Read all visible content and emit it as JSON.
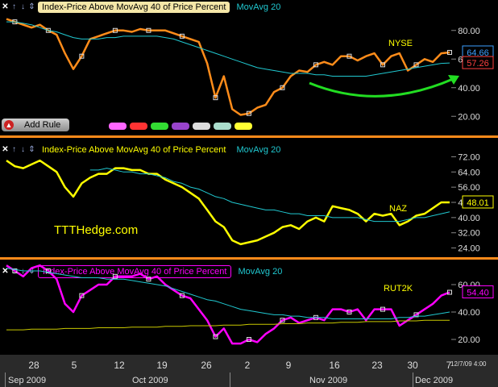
{
  "panels": [
    {
      "header_label": "Index-Price Above  MovAvg 40 of Price Percent",
      "ma_label": "MovAvg 20",
      "symbol_label": "NYSE",
      "last_value": "64.66",
      "ma_value": "57.26"
    },
    {
      "header_label": "Index-Price Above  MovAvg 40 of Price Percent",
      "ma_label": "MovAvg 20",
      "symbol_label": "NAZ",
      "last_value": "48.01"
    },
    {
      "header_label": "Index-Price Above  MovAvg 40 of Price Percent",
      "ma_label": "MovAvg 20",
      "symbol_label": "RUT2K",
      "last_value": "54.40"
    }
  ],
  "add_rule_label": "Add Rule",
  "watermark": "TTTHedge.com",
  "x_axis": {
    "day_ticks": [
      "28",
      "5",
      "12",
      "19",
      "26",
      "2",
      "9",
      "16",
      "23",
      "30",
      "7"
    ],
    "months": [
      "Sep 2009",
      "Oct 2009",
      "Nov 2009",
      "Dec 2009"
    ],
    "timestamp": "12/7/09 4:00"
  },
  "colors": {
    "nyse": "#ff8c1a",
    "naz": "#ffff00",
    "rut": "#ff00ff",
    "ma": "#20c8d0",
    "accent": "#ff8a1a"
  },
  "swatch_colors": [
    "#ff66ff",
    "#ff3333",
    "#33dd33",
    "#9944cc",
    "#dddddd",
    "#aaddcc",
    "#ffff33"
  ],
  "chart_data": [
    {
      "type": "line",
      "panel": "NYSE",
      "x": [
        "Sep 22",
        "Sep 23",
        "Sep 24",
        "Sep 25",
        "Sep 28",
        "Sep 29",
        "Sep 30",
        "Oct 1",
        "Oct 2",
        "Oct 5",
        "Oct 6",
        "Oct 7",
        "Oct 8",
        "Oct 9",
        "Oct 12",
        "Oct 13",
        "Oct 14",
        "Oct 15",
        "Oct 16",
        "Oct 19",
        "Oct 20",
        "Oct 21",
        "Oct 22",
        "Oct 23",
        "Oct 26",
        "Oct 27",
        "Oct 28",
        "Oct 29",
        "Oct 30",
        "Nov 2",
        "Nov 3",
        "Nov 4",
        "Nov 5",
        "Nov 6",
        "Nov 9",
        "Nov 10",
        "Nov 11",
        "Nov 12",
        "Nov 13",
        "Nov 16",
        "Nov 17",
        "Nov 18",
        "Nov 19",
        "Nov 20",
        "Nov 23",
        "Nov 24",
        "Nov 25",
        "Nov 27",
        "Nov 30",
        "Dec 1",
        "Dec 2",
        "Dec 3",
        "Dec 4",
        "Dec 7"
      ],
      "series": [
        {
          "values": [
            88,
            86,
            84,
            82,
            84,
            80,
            77,
            64,
            53,
            62,
            74,
            76,
            78,
            80,
            80,
            79,
            81,
            80,
            80,
            80,
            78,
            76,
            74,
            72,
            57,
            33,
            48,
            25,
            21,
            22,
            26,
            28,
            37,
            40,
            48,
            52,
            51,
            56,
            58,
            56,
            62,
            62,
            59,
            62,
            64,
            56,
            62,
            64,
            52,
            56,
            60,
            58,
            64,
            64.66
          ]
        },
        {
          "values": [
            86,
            86,
            85,
            84,
            82,
            80,
            79,
            77,
            75,
            74,
            74,
            74,
            75,
            75,
            76,
            76,
            76,
            76,
            76,
            75,
            74,
            72,
            70,
            68,
            66,
            64,
            62,
            60,
            58,
            56,
            54,
            53,
            52,
            51,
            50,
            50,
            50,
            49,
            49,
            48,
            48,
            48,
            48,
            48,
            49,
            50,
            51,
            52,
            53,
            54,
            55,
            56,
            57,
            57.26
          ]
        }
      ],
      "ylim": [
        10,
        90
      ],
      "y_ticks": [
        20,
        40,
        60,
        80
      ]
    },
    {
      "type": "line",
      "panel": "NAZ",
      "x": [
        "Sep 22",
        "Sep 23",
        "Sep 24",
        "Sep 25",
        "Sep 28",
        "Sep 29",
        "Sep 30",
        "Oct 1",
        "Oct 2",
        "Oct 5",
        "Oct 6",
        "Oct 7",
        "Oct 8",
        "Oct 9",
        "Oct 12",
        "Oct 13",
        "Oct 14",
        "Oct 15",
        "Oct 16",
        "Oct 19",
        "Oct 20",
        "Oct 21",
        "Oct 22",
        "Oct 23",
        "Oct 26",
        "Oct 27",
        "Oct 28",
        "Oct 29",
        "Oct 30",
        "Nov 2",
        "Nov 3",
        "Nov 4",
        "Nov 5",
        "Nov 6",
        "Nov 9",
        "Nov 10",
        "Nov 11",
        "Nov 12",
        "Nov 13",
        "Nov 16",
        "Nov 17",
        "Nov 18",
        "Nov 19",
        "Nov 20",
        "Nov 23",
        "Nov 24",
        "Nov 25",
        "Nov 27",
        "Nov 30",
        "Dec 1",
        "Dec 2",
        "Dec 3",
        "Dec 4",
        "Dec 7"
      ],
      "series": [
        {
          "values": [
            70,
            67,
            66,
            68,
            70,
            67,
            64,
            56,
            51,
            58,
            61,
            63,
            63,
            66,
            66,
            65,
            65,
            63,
            63,
            60,
            58,
            56,
            53,
            50,
            44,
            38,
            35,
            28,
            26,
            27,
            28,
            30,
            32,
            35,
            36,
            34,
            38,
            40,
            38,
            46,
            45,
            44,
            42,
            38,
            42,
            41,
            42,
            36,
            38,
            41,
            42,
            45,
            48,
            48.01
          ]
        },
        {
          "values": [
            null,
            null,
            null,
            null,
            null,
            null,
            null,
            null,
            null,
            null,
            65,
            65,
            66,
            65,
            64,
            64,
            63,
            63,
            62,
            61,
            59,
            58,
            56,
            55,
            53,
            51,
            50,
            48,
            47,
            46,
            45,
            44,
            44,
            43,
            42,
            42,
            41,
            41,
            41,
            40,
            40,
            40,
            40,
            39,
            38,
            38,
            38,
            38,
            39,
            40,
            40,
            41,
            42,
            43
          ]
        }
      ],
      "ylim": [
        20,
        76
      ],
      "y_ticks": [
        24,
        32,
        40,
        48,
        56,
        64,
        72
      ]
    },
    {
      "type": "line",
      "panel": "RUT2K",
      "x": [
        "Sep 22",
        "Sep 23",
        "Sep 24",
        "Sep 25",
        "Sep 28",
        "Sep 29",
        "Sep 30",
        "Oct 1",
        "Oct 2",
        "Oct 5",
        "Oct 6",
        "Oct 7",
        "Oct 8",
        "Oct 9",
        "Oct 12",
        "Oct 13",
        "Oct 14",
        "Oct 15",
        "Oct 16",
        "Oct 19",
        "Oct 20",
        "Oct 21",
        "Oct 22",
        "Oct 23",
        "Oct 26",
        "Oct 27",
        "Oct 28",
        "Oct 29",
        "Oct 30",
        "Nov 2",
        "Nov 3",
        "Nov 4",
        "Nov 5",
        "Nov 6",
        "Nov 9",
        "Nov 10",
        "Nov 11",
        "Nov 12",
        "Nov 13",
        "Nov 16",
        "Nov 17",
        "Nov 18",
        "Nov 19",
        "Nov 20",
        "Nov 23",
        "Nov 24",
        "Nov 25",
        "Nov 27",
        "Nov 30",
        "Dec 1",
        "Dec 2",
        "Dec 3",
        "Dec 4",
        "Dec 7"
      ],
      "series": [
        {
          "values": [
            74,
            70,
            66,
            72,
            74,
            70,
            64,
            46,
            40,
            52,
            56,
            60,
            60,
            66,
            66,
            66,
            68,
            64,
            66,
            60,
            56,
            52,
            50,
            42,
            34,
            22,
            28,
            17,
            17,
            20,
            18,
            24,
            28,
            34,
            36,
            32,
            34,
            36,
            34,
            42,
            42,
            40,
            42,
            34,
            42,
            42,
            42,
            30,
            34,
            38,
            42,
            46,
            52,
            54.4
          ]
        },
        {
          "values": [
            72,
            71,
            70,
            70,
            70,
            69,
            68,
            67,
            66,
            65,
            65,
            65,
            64,
            64,
            64,
            63,
            62,
            61,
            60,
            59,
            57,
            55,
            53,
            51,
            49,
            48,
            46,
            44,
            42,
            41,
            40,
            39,
            38,
            38,
            37,
            37,
            36,
            36,
            36,
            35,
            35,
            35,
            35,
            35,
            35,
            35,
            35,
            36,
            36,
            37,
            37,
            38,
            39,
            40
          ]
        },
        {
          "values": [
            27,
            27,
            27,
            27.5,
            27.5,
            27.5,
            27.5,
            28,
            28,
            28,
            28,
            28.5,
            28.5,
            28.5,
            28.5,
            29,
            29,
            29,
            29,
            29.5,
            29.5,
            29.5,
            30,
            30,
            30,
            30,
            30.5,
            30.5,
            30.5,
            31,
            31,
            31,
            31,
            31.5,
            31.5,
            31.5,
            32,
            32,
            32,
            32,
            32.5,
            32.5,
            32.5,
            33,
            33,
            33,
            33,
            33.5,
            33.5,
            33.5,
            34,
            34,
            34,
            34
          ]
        }
      ],
      "ylim": [
        10,
        70
      ],
      "y_ticks": [
        20,
        40,
        60
      ]
    }
  ]
}
